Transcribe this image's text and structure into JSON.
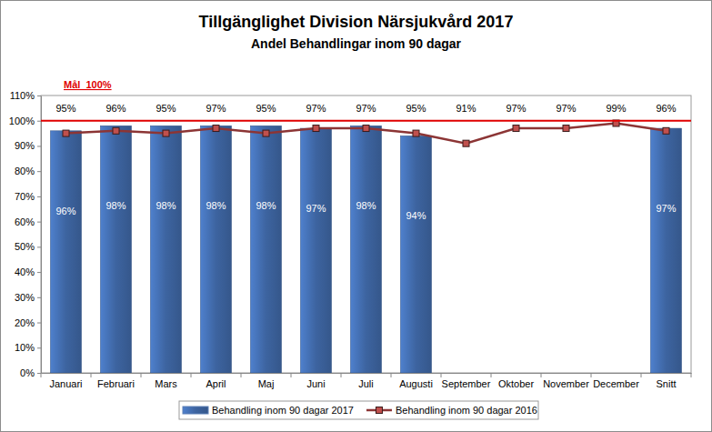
{
  "chart_data": {
    "type": "bar",
    "title": "Tillgänglighet Division Närsjukvård 2017",
    "subtitle": "Andel Behandlingar inom 90 dagar",
    "categories": [
      "Januari",
      "Februari",
      "Mars",
      "April",
      "Maj",
      "Juni",
      "Juli",
      "Augusti",
      "September",
      "Oktober",
      "November",
      "December",
      "Snitt"
    ],
    "series": [
      {
        "name": "Behandling inom 90 dagar 2017",
        "type": "bar",
        "color": "#3d64a0",
        "values": [
          96,
          98,
          98,
          98,
          98,
          97,
          98,
          94,
          null,
          null,
          null,
          null,
          97
        ],
        "value_labels": [
          "96%",
          "98%",
          "98%",
          "98%",
          "98%",
          "97%",
          "98%",
          "94%",
          null,
          null,
          null,
          null,
          "97%"
        ]
      },
      {
        "name": "Behandling inom 90 dagar 2016",
        "type": "line",
        "color": "#8c3535",
        "marker": "square",
        "values": [
          95,
          96,
          95,
          97,
          95,
          97,
          97,
          95,
          91,
          97,
          97,
          99,
          96
        ],
        "value_labels": [
          "95%",
          "96%",
          "95%",
          "97%",
          "95%",
          "97%",
          "97%",
          "95%",
          "91%",
          "97%",
          "97%",
          "99%",
          "96%"
        ]
      }
    ],
    "ylim": [
      0,
      110
    ],
    "yticks": [
      {
        "value": 0,
        "label": "0%"
      },
      {
        "value": 10,
        "label": "10%"
      },
      {
        "value": 20,
        "label": "20%"
      },
      {
        "value": 30,
        "label": "30%"
      },
      {
        "value": 40,
        "label": "40%"
      },
      {
        "value": 50,
        "label": "50%"
      },
      {
        "value": 60,
        "label": "60%"
      },
      {
        "value": 70,
        "label": "70%"
      },
      {
        "value": 80,
        "label": "80%"
      },
      {
        "value": 90,
        "label": "90%"
      },
      {
        "value": 100,
        "label": "100%"
      },
      {
        "value": 110,
        "label": "110%"
      }
    ],
    "annotations": [
      {
        "text": "Mål  100%",
        "value": 100,
        "color": "#e00000"
      }
    ],
    "grid": false,
    "data_labels": true,
    "legend": "bottom"
  }
}
